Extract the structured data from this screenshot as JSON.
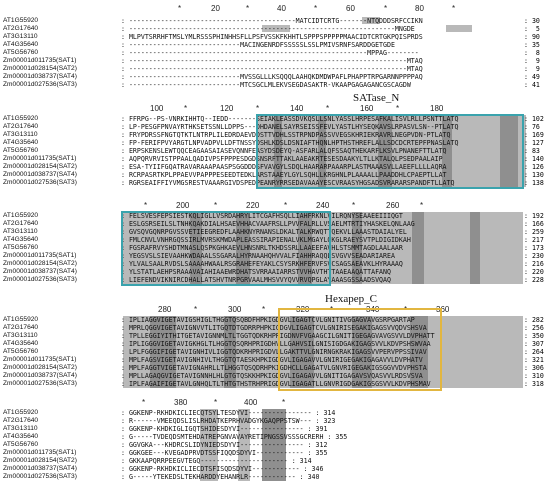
{
  "names": [
    "AT1G55920",
    "AT2G17640",
    "AT3G13110",
    "AT4G35640",
    "AT5G56760",
    "Zm00001d011735(SAT1)",
    "Zm00001d028154(SAT2)",
    "Zm00001d038737(SAT4)",
    "Zm00001d027536(SAT3)"
  ],
  "domain_labels": {
    "satase": "SATase_N",
    "hexapep": "Hexapep_C"
  },
  "colors": {
    "satase_box": "#3aa3ad",
    "hexapep_box": "#e2b640",
    "dark_shade": "#8f8f8f",
    "mid_shade": "#b9b9b9"
  },
  "blocks": [
    {
      "ruler": [
        "*",
        "20",
        "*",
        "40",
        "*",
        "60",
        "*",
        "80",
        "*"
      ],
      "seqs": [
        ": ------------------------------------------MATCIDTCRTG-------NTQDDDSRFCCIKN",
        ": -------------------------------------------------------------------MNGDE",
        ": MLPVTSRRHFTMSLYMLRSSSPHINHHSFLLPSFVSSKFKHHTLSPPPSPPPPPMAACIDTCRTGKPQISPRDS",
        ": ----------------------------MACINGENRDFSSSSSLSSLPMIVSRNFSARDDGETGDE",
        ": ------------------------------------------------------------MPPAG--------",
        ": ----------------------------------------------------------------------MTAQ",
        ": ----------------------------------------------------------------------MTAQ",
        ": ----------------------------MVSSGLLLKSQQQLAAHQKDMDWPAFLPHAPPTRPGARNNPPPPAQ",
        ": ----------------------------MTCSGCLMLEKVSEGDASAKTR-VKAAPGAGAGANCGSCAGDW"
      ],
      "nums": [
        ": 30",
        ":  5",
        ": 90",
        ": 35",
        ":  8",
        ":  9",
        ":  9",
        ": 49",
        ": 41"
      ]
    },
    {
      "ruler": [
        "100",
        "*",
        "120",
        "*",
        "140",
        "*",
        "160",
        "*",
        "180"
      ],
      "seqs": [
        ": FFRPG--PS-VNRKIHHTQ--IEDD-------SEIAKLEASSDVKQSLLSNLYASSLHRPESAFKALISVLRLLPSNTTLATQ",
        ": LP-PESGFPNVAYRTHKSETSSNLLDPPS---DHDANELSAYRSEISSFEVLYASTLHYSEQKAVSLRPASVLSN--PTLATQ",
        ": FRYPDRSSFNGTQTKTLNTRPLILEDRDAEVDDSTTVDHLSSTRPNDPASSVVEGSKHRIEKRAVRLNEGPVDN-PTLATQ",
        ": FP-FERIFPVYARGTLNPVADPVLLDFTNSSYDSHLKDSLDSNIAFTHQNLHPTHSTHREFLALLSDCDCRTEPFPNASLATQ",
        ": ERPSKENSLEWTQQCEAGAASAIASEVQNNFEASYDSDEYQ-ASFARLALQFSSAQTHEKARFLKSVLPNANEFTTLATQ",
        ": AQPQRVRVISTPPAALQADIVPSFPPPESDGDSNSRFTTAKLAAEAKRTESESDAAKYLTLLKTALQLPSEDPAALAIP",
        ": ESA-TYIIFGQATRAVARAAAPAASPSGGDDDSFVAVGYLSDQLHAARARPAAARPLASTMAAASVLLAEEFLLLLAQRA",
        ": RCRPASRTKPLPPAEVVPAPPPESEEDTEDKLARSTAAEYLGYLSQHLLKRGHNLPLAAAALLPAADDHLCPAEPTLLAT",
        ": RGRSEAIFFIYVMGSRESTVAAARGIVDSPEDPEANRYRRSEDAVAAAYESCVRAASYHGSADSVRARARSPANDFTLLATQ"
      ],
      "nums": [
        ": 102",
        ": 76",
        ": 169",
        ": 127",
        ": 83",
        ": 140",
        ": 126",
        ": 130",
        ": 138"
      ]
    },
    {
      "ruler": [
        "*",
        "200",
        "*",
        "220",
        "*",
        "240",
        "*",
        "260",
        "*"
      ],
      "seqs": [
        ": FELSVESFEPSIESTKQLIGLLVSRDAHRYLITCGAFHSQLLIAHFRKNLVILRQNYSEAAEEIIIQGT",
        ": ESLGSRSEILSLTNHKQAKDIALHSAEVHHACVAAFRSLLPVVFALRLLVSAELMTRTIYHASKELQNLAAG",
        ": GVSQVGQNRPGVSSVETIEEGREDFLAAHKNYRNANSLDKALTALKRWQTTQEKVLLAAASTDAIALYEL",
        ": FMLCNVLVNHRGQSSIRLMVRSKMWDAPLEASSIRAPIENALVKLMGAYLQKGLRAEYSVTPLDIGIDKAH",
        ": FGSRAFRVYSHDTMNASLQSPKGHKAEVLHNSNRLTKHDSSRLLAAEEFAVHLSTSMMTAGDLAALAAR",
        ": YEGSVSLSIEVAAHKWDAAALSSGARALHYRNAAHQHVVALFIAHHRAQQLSVGVVSEADARIAREA",
        ": YLVALSAALRVDSLSAAAAHWAALRSGRAHEFEYAKLCSYSRKHFERVFSVCSAGSAEAVKLHYRAAAQ",
        ": YLSTATLAEHPSRAAAVAIAHIAAEWRDHATSVRRAAIARRSTVVHAVTHTTAAEAAQATTAFANQ",
        ": LIEFENDVIKNIRCDHALLATSHVTNRPGRVAALMHSVVYQVVRVQPGLAYAAASGSSAADSVQAQ"
      ],
      "nums": [
        ": 192",
        ": 166",
        ": 259",
        ": 217",
        ": 173",
        ": 230",
        ": 216",
        ": 220",
        ": 228"
      ]
    },
    {
      "ruler": [
        "280",
        "*",
        "300",
        "*",
        "320",
        "*",
        "340",
        "*",
        "360"
      ],
      "seqs": [
        ": IPLIAGGVIGETAVIGSHIGLTHGGTQSQBDFHPKIGDGVLIGAGTCVLGNITIVGGAGVAVGSRPGARTAP",
        ": MPRLQGGVIGETAVIGNVVTLITGQTDTGDRRPHPKIGDGVLIGAGTCVLGNIRISEGAKIGAGSVVQDVSHSVA",
        ": TPLLEGGIYITHITGETAVIGNNMLTLTGGTQDKRHPRIGDNVFVGAAGCILGNITIGEGAGVAVGSVVLDVPHATT",
        ": IPLIGGGVIGETAVIGKHGLTLHGGTQSQRHPRIGDHVLLGAHVSILGNISIGDGAKIGAGSVVLKDVPSHSWVAA",
        ": LPLFGGGIFIGETAVIGNHIVLIGGTQDKRHPRIGDVLLGAKTTVLGNIRNGKRAKIGAGSVVPERVPPSSIVAV",
        ": MPLFAGSVIGETAVIGNHIVLTHGGTQTAESKHPKIGDGVLIGAGAVVLGNIRIGEGAKIGAGAVVLDVPHATV",
        ": MPLFAGGTVIGETAVIGNAHRLLTLHGGTQSQDRHPKIGDHCLLGAGATVLGNVRIGEGAKIGSGGVVDVPHSTA",
        ": MPLLAGAQGVIGETAVIGNNHLHLGTGTQSKKHPKIGDGVLIGAGAVVLGNITIGAGAVSVQASVVLRDSVSVA",
        ": IPLFAGAIFIGETAVLGNHQLTLTHTGTHSTRHPRIGDGVLIGAGATLLGNVRIGDGAKIGSGSVVLKDVPHSMAV"
      ],
      "nums": [
        ": 282",
        ": 256",
        ": 350",
        ": 307",
        ": 264",
        ": 321",
        ": 306",
        ": 310",
        ": 318"
      ]
    },
    {
      "ruler": [
        "*",
        "380",
        "*",
        "400",
        "*"
      ],
      "seqs": [
        ": GGKENP-RKHDKICLIECQTSYLTESDYVI---------------- : 314",
        ": R------VMEEQDSLISLRHDATKEPRHVADGYKGAQPPSTSW--- : 323",
        ": GGKENP-KHDKIGLIGQTSHIDESDYVI---------------- : 391",
        ": G-----TVDEQDSMTEHDATREPGNVAVAYRETIPNGSSVSSSGCRERH : 355",
        ": GGVGKA---KHDRCSLIDYNIEDSDYVI---------------- : 312",
        ": GGKGEE---KVEGADPRVDTSSFIQQDSDYVI------------ : 355",
        ": GKKAAPQRRPEEGVTEGQ---------------------- : 314",
        ": GGKENP-RKHDKICLIECDTSFISQDSDYVI------------ : 346",
        ": G-----YTEKEDSLTEKHARDDYEHANRLR------------ : 340"
      ],
      "nums": []
    }
  ]
}
